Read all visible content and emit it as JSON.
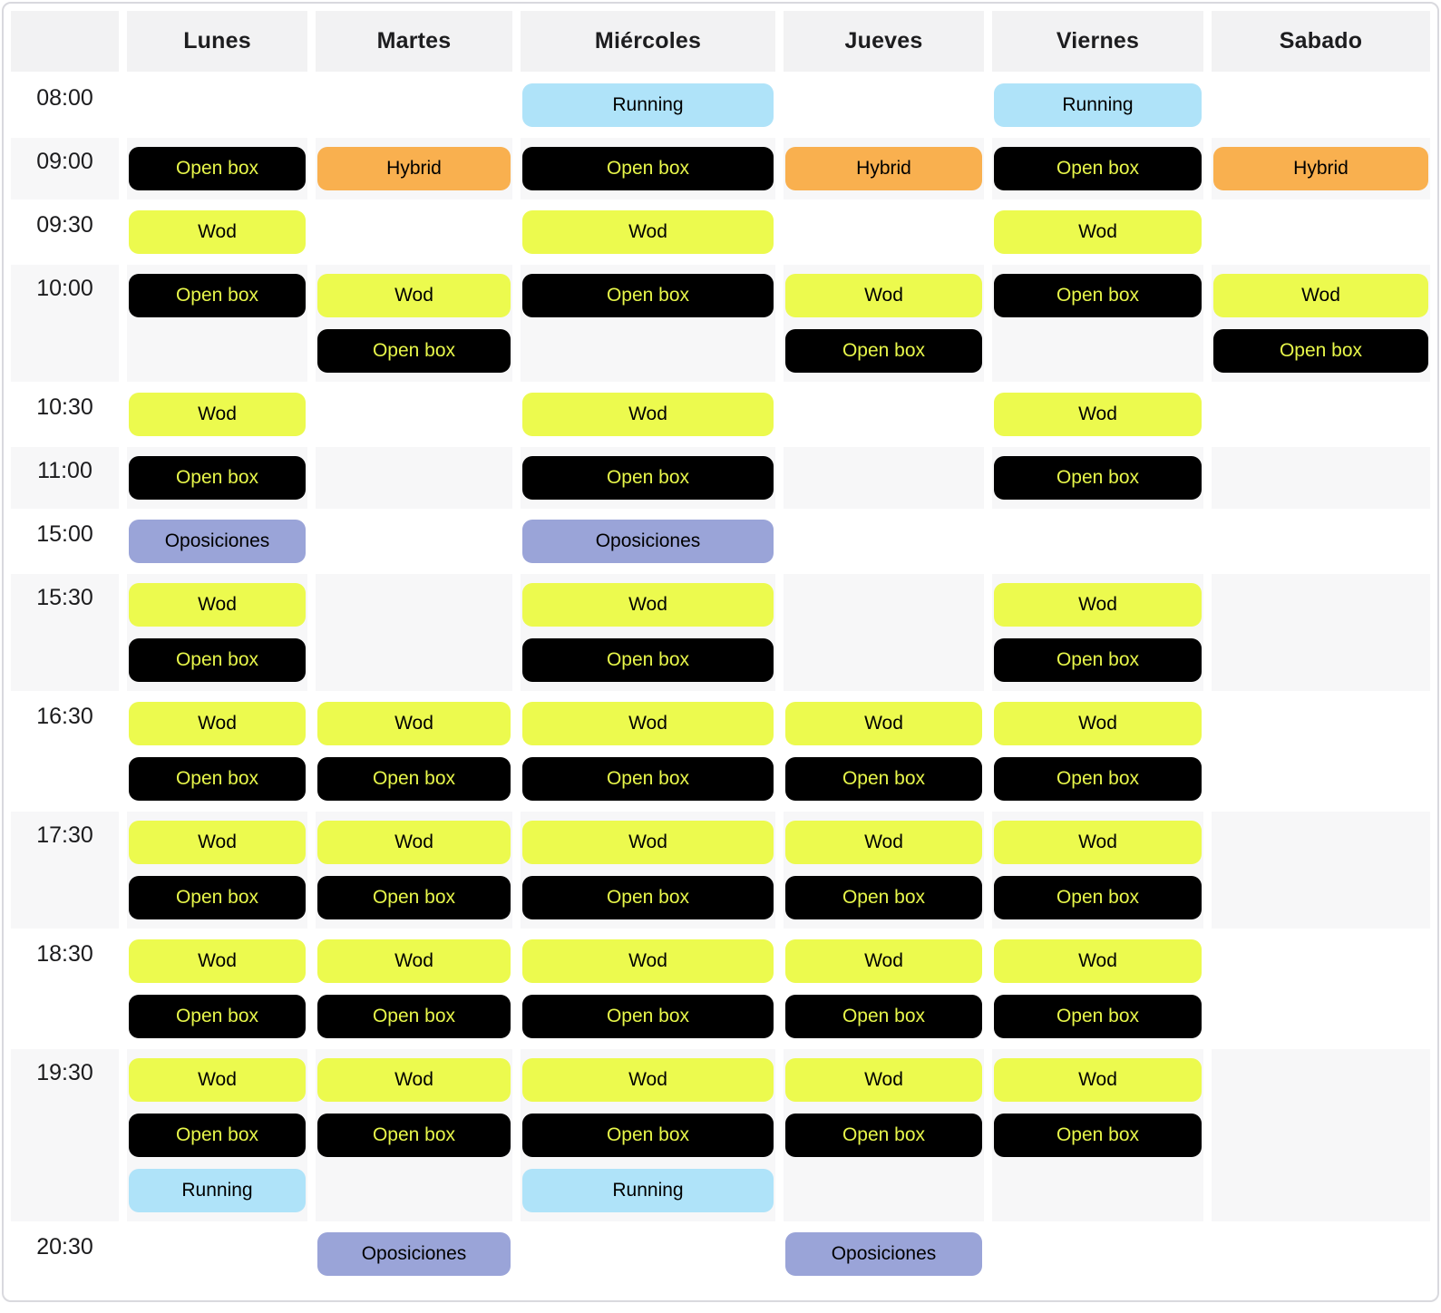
{
  "days": [
    "Lunes",
    "Martes",
    "Miércoles",
    "Jueves",
    "Viernes",
    "Sabado"
  ],
  "colors": {
    "header_bg": "#f2f2f3",
    "stripe_bg": "#f7f7f8",
    "border": "#d9d9de"
  },
  "event_types": {
    "wod": {
      "label": "Wod",
      "bg": "#ecfa4e",
      "text": "#000000"
    },
    "open_box": {
      "label": "Open box",
      "bg": "#000000",
      "text": "#e8f74a"
    },
    "hybrid": {
      "label": "Hybrid",
      "bg": "#f9b04f",
      "text": "#000000"
    },
    "running": {
      "label": "Running",
      "bg": "#afe3f9",
      "text": "#000000"
    },
    "oposiciones": {
      "label": "Oposiciones",
      "bg": "#9aa4d8",
      "text": "#000000"
    }
  },
  "rows": [
    {
      "time": "08:00",
      "cells": [
        [],
        [],
        [
          "running"
        ],
        [],
        [
          "running"
        ],
        []
      ]
    },
    {
      "time": "09:00",
      "cells": [
        [
          "open_box"
        ],
        [
          "hybrid"
        ],
        [
          "open_box"
        ],
        [
          "hybrid"
        ],
        [
          "open_box"
        ],
        [
          "hybrid"
        ]
      ]
    },
    {
      "time": "09:30",
      "cells": [
        [
          "wod"
        ],
        [],
        [
          "wod"
        ],
        [],
        [
          "wod"
        ],
        []
      ]
    },
    {
      "time": "10:00",
      "cells": [
        [
          "open_box"
        ],
        [
          "wod",
          "open_box"
        ],
        [
          "open_box"
        ],
        [
          "wod",
          "open_box"
        ],
        [
          "open_box"
        ],
        [
          "wod",
          "open_box"
        ]
      ]
    },
    {
      "time": "10:30",
      "cells": [
        [
          "wod"
        ],
        [],
        [
          "wod"
        ],
        [],
        [
          "wod"
        ],
        []
      ]
    },
    {
      "time": "11:00",
      "cells": [
        [
          "open_box"
        ],
        [],
        [
          "open_box"
        ],
        [],
        [
          "open_box"
        ],
        []
      ]
    },
    {
      "time": "15:00",
      "cells": [
        [
          "oposiciones"
        ],
        [],
        [
          "oposiciones"
        ],
        [],
        [],
        []
      ]
    },
    {
      "time": "15:30",
      "cells": [
        [
          "wod",
          "open_box"
        ],
        [],
        [
          "wod",
          "open_box"
        ],
        [],
        [
          "wod",
          "open_box"
        ],
        []
      ]
    },
    {
      "time": "16:30",
      "cells": [
        [
          "wod",
          "open_box"
        ],
        [
          "wod",
          "open_box"
        ],
        [
          "wod",
          "open_box"
        ],
        [
          "wod",
          "open_box"
        ],
        [
          "wod",
          "open_box"
        ],
        []
      ]
    },
    {
      "time": "17:30",
      "cells": [
        [
          "wod",
          "open_box"
        ],
        [
          "wod",
          "open_box"
        ],
        [
          "wod",
          "open_box"
        ],
        [
          "wod",
          "open_box"
        ],
        [
          "wod",
          "open_box"
        ],
        []
      ]
    },
    {
      "time": "18:30",
      "cells": [
        [
          "wod",
          "open_box"
        ],
        [
          "wod",
          "open_box"
        ],
        [
          "wod",
          "open_box"
        ],
        [
          "wod",
          "open_box"
        ],
        [
          "wod",
          "open_box"
        ],
        []
      ]
    },
    {
      "time": "19:30",
      "cells": [
        [
          "wod",
          "open_box",
          "running"
        ],
        [
          "wod",
          "open_box"
        ],
        [
          "wod",
          "open_box",
          "running"
        ],
        [
          "wod",
          "open_box"
        ],
        [
          "wod",
          "open_box"
        ],
        []
      ]
    },
    {
      "time": "20:30",
      "cells": [
        [],
        [
          "oposiciones"
        ],
        [],
        [
          "oposiciones"
        ],
        [],
        []
      ]
    }
  ]
}
